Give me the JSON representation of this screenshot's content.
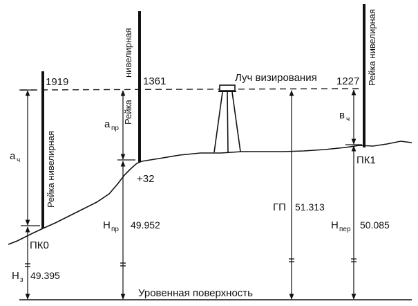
{
  "labels": {
    "sight_line": "Луч визирования",
    "level_surface": "Уровенная поверхность",
    "staff": "Рейка нивелирная",
    "staff_word1": "Рейка",
    "staff_word2": "нивелирная"
  },
  "stations": {
    "pk0": {
      "name": "ПК0",
      "reading": "1919",
      "a_main": "а",
      "a_sub": "ч",
      "h_main": "Н",
      "h_sub": "з",
      "h_value": "49.395"
    },
    "plus32": {
      "name": "+32",
      "reading": "1361",
      "a_main": "а",
      "a_sub": "пр",
      "h_main": "Н",
      "h_sub": "пр",
      "h_value": "49.952"
    },
    "instrument": {
      "gp_label": "ГП",
      "gp_value": "51.313"
    },
    "pk1": {
      "name": "ПК1",
      "reading": "1227",
      "b_main": "в",
      "b_sub": "ч",
      "h_main": "Н",
      "h_sub": "пер",
      "h_value": "50.085"
    }
  },
  "colors": {
    "ink": "#111111",
    "background": "#ffffff"
  },
  "icons": {
    "instrument": "tripod-level-icon",
    "arrow": "arrow-head-icon"
  }
}
